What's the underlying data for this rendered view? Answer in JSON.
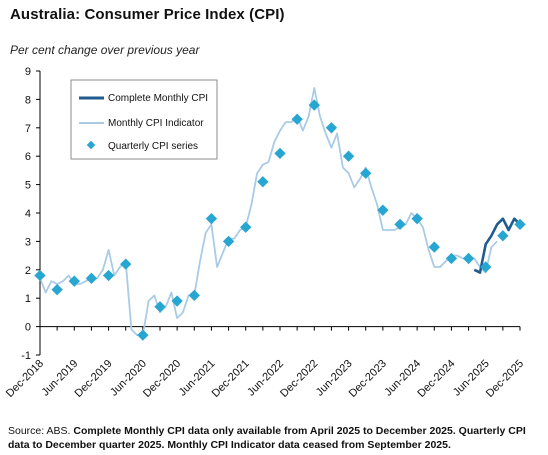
{
  "title": "Australia: Consumer Price Index (CPI)",
  "subtitle": "Per cent change over previous year",
  "source": {
    "prefix": "Source: ABS.",
    "note": "Complete Monthly CPI data only available from April 2025 to December 2025. Quarterly CPI data to December quarter 2025. Monthly CPI Indicator data ceased from September 2025."
  },
  "colors": {
    "complete_monthly": "#1f5b8e",
    "monthly_indicator": "#a9cbe6",
    "quarterly": "#27a6d1",
    "axis": "#000000"
  },
  "chart_data": {
    "type": "line",
    "ylim": [
      -1,
      9
    ],
    "yticks": [
      -1,
      0,
      1,
      2,
      3,
      4,
      5,
      6,
      7,
      8,
      9
    ],
    "xlim": [
      "2018-12",
      "2025-12"
    ],
    "xtick_labels": [
      "Dec-2018",
      "Jun-2019",
      "Dec-2019",
      "Jun-2020",
      "Dec-2020",
      "Jun-2021",
      "Dec-2021",
      "Jun-2022",
      "Dec-2022",
      "Jun-2023",
      "Dec-2023",
      "Jun-2024",
      "Dec-2024",
      "Jun-2025",
      "Dec-2025"
    ],
    "xtick_dates": [
      "2018-12",
      "2019-06",
      "2019-12",
      "2020-06",
      "2020-12",
      "2021-06",
      "2021-12",
      "2022-06",
      "2022-12",
      "2023-06",
      "2023-12",
      "2024-06",
      "2024-12",
      "2025-06",
      "2025-12"
    ],
    "legend": {
      "position": "top-left",
      "entries": [
        "Complete Monthly CPI",
        "Monthly CPI Indicator",
        "Quarterly CPI series"
      ]
    },
    "series": [
      {
        "name": "Complete Monthly CPI",
        "style": "line",
        "x": [
          "2025-04",
          "2025-05",
          "2025-06",
          "2025-07",
          "2025-08",
          "2025-09",
          "2025-10",
          "2025-11",
          "2025-12"
        ],
        "y": [
          2.0,
          1.9,
          2.9,
          3.2,
          3.6,
          3.8,
          3.4,
          3.8,
          3.6
        ]
      },
      {
        "name": "Monthly CPI Indicator",
        "style": "line",
        "x": [
          "2018-12",
          "2019-01",
          "2019-02",
          "2019-03",
          "2019-04",
          "2019-05",
          "2019-06",
          "2019-07",
          "2019-08",
          "2019-09",
          "2019-10",
          "2019-11",
          "2019-12",
          "2020-01",
          "2020-02",
          "2020-03",
          "2020-04",
          "2020-05",
          "2020-06",
          "2020-07",
          "2020-08",
          "2020-09",
          "2020-10",
          "2020-11",
          "2020-12",
          "2021-01",
          "2021-02",
          "2021-03",
          "2021-04",
          "2021-05",
          "2021-06",
          "2021-07",
          "2021-08",
          "2021-09",
          "2021-10",
          "2021-11",
          "2021-12",
          "2022-01",
          "2022-02",
          "2022-03",
          "2022-04",
          "2022-05",
          "2022-06",
          "2022-07",
          "2022-08",
          "2022-09",
          "2022-10",
          "2022-11",
          "2022-12",
          "2023-01",
          "2023-02",
          "2023-03",
          "2023-04",
          "2023-05",
          "2023-06",
          "2023-07",
          "2023-08",
          "2023-09",
          "2023-10",
          "2023-11",
          "2023-12",
          "2024-01",
          "2024-02",
          "2024-03",
          "2024-04",
          "2024-05",
          "2024-06",
          "2024-07",
          "2024-08",
          "2024-09",
          "2024-10",
          "2024-11",
          "2024-12",
          "2025-01",
          "2025-02",
          "2025-03",
          "2025-04",
          "2025-05",
          "2025-06",
          "2025-07",
          "2025-08"
        ],
        "y": [
          1.7,
          1.2,
          1.6,
          1.5,
          1.6,
          1.8,
          1.5,
          1.5,
          1.6,
          1.7,
          1.7,
          2.0,
          2.7,
          1.8,
          2.1,
          2.3,
          -0.1,
          -0.3,
          -0.3,
          0.9,
          1.1,
          0.5,
          0.7,
          1.2,
          0.3,
          0.5,
          1.1,
          1.1,
          2.3,
          3.3,
          3.6,
          2.1,
          2.6,
          3.1,
          3.1,
          3.4,
          3.5,
          4.3,
          5.4,
          5.7,
          5.8,
          6.5,
          6.9,
          7.2,
          7.2,
          7.4,
          6.9,
          7.4,
          8.4,
          7.4,
          6.8,
          6.3,
          6.8,
          5.6,
          5.4,
          4.9,
          5.2,
          5.6,
          4.9,
          4.3,
          3.4,
          3.4,
          3.4,
          3.5,
          3.6,
          4.0,
          3.8,
          3.5,
          2.7,
          2.1,
          2.1,
          2.3,
          2.5,
          2.5,
          2.4,
          2.4,
          2.4,
          2.1,
          1.9,
          2.8,
          3.0
        ]
      },
      {
        "name": "Quarterly CPI series",
        "style": "markers",
        "x": [
          "2018-12",
          "2019-03",
          "2019-06",
          "2019-09",
          "2019-12",
          "2020-03",
          "2020-06",
          "2020-09",
          "2020-12",
          "2021-03",
          "2021-06",
          "2021-09",
          "2021-12",
          "2022-03",
          "2022-06",
          "2022-09",
          "2022-12",
          "2023-03",
          "2023-06",
          "2023-09",
          "2023-12",
          "2024-03",
          "2024-06",
          "2024-09",
          "2024-12",
          "2025-03",
          "2025-06",
          "2025-09",
          "2025-12"
        ],
        "y": [
          1.8,
          1.3,
          1.6,
          1.7,
          1.8,
          2.2,
          -0.3,
          0.7,
          0.9,
          1.1,
          3.8,
          3.0,
          3.5,
          5.1,
          6.1,
          7.3,
          7.8,
          7.0,
          6.0,
          5.4,
          4.1,
          3.6,
          3.8,
          2.8,
          2.4,
          2.4,
          2.1,
          3.2,
          3.6
        ]
      }
    ]
  }
}
